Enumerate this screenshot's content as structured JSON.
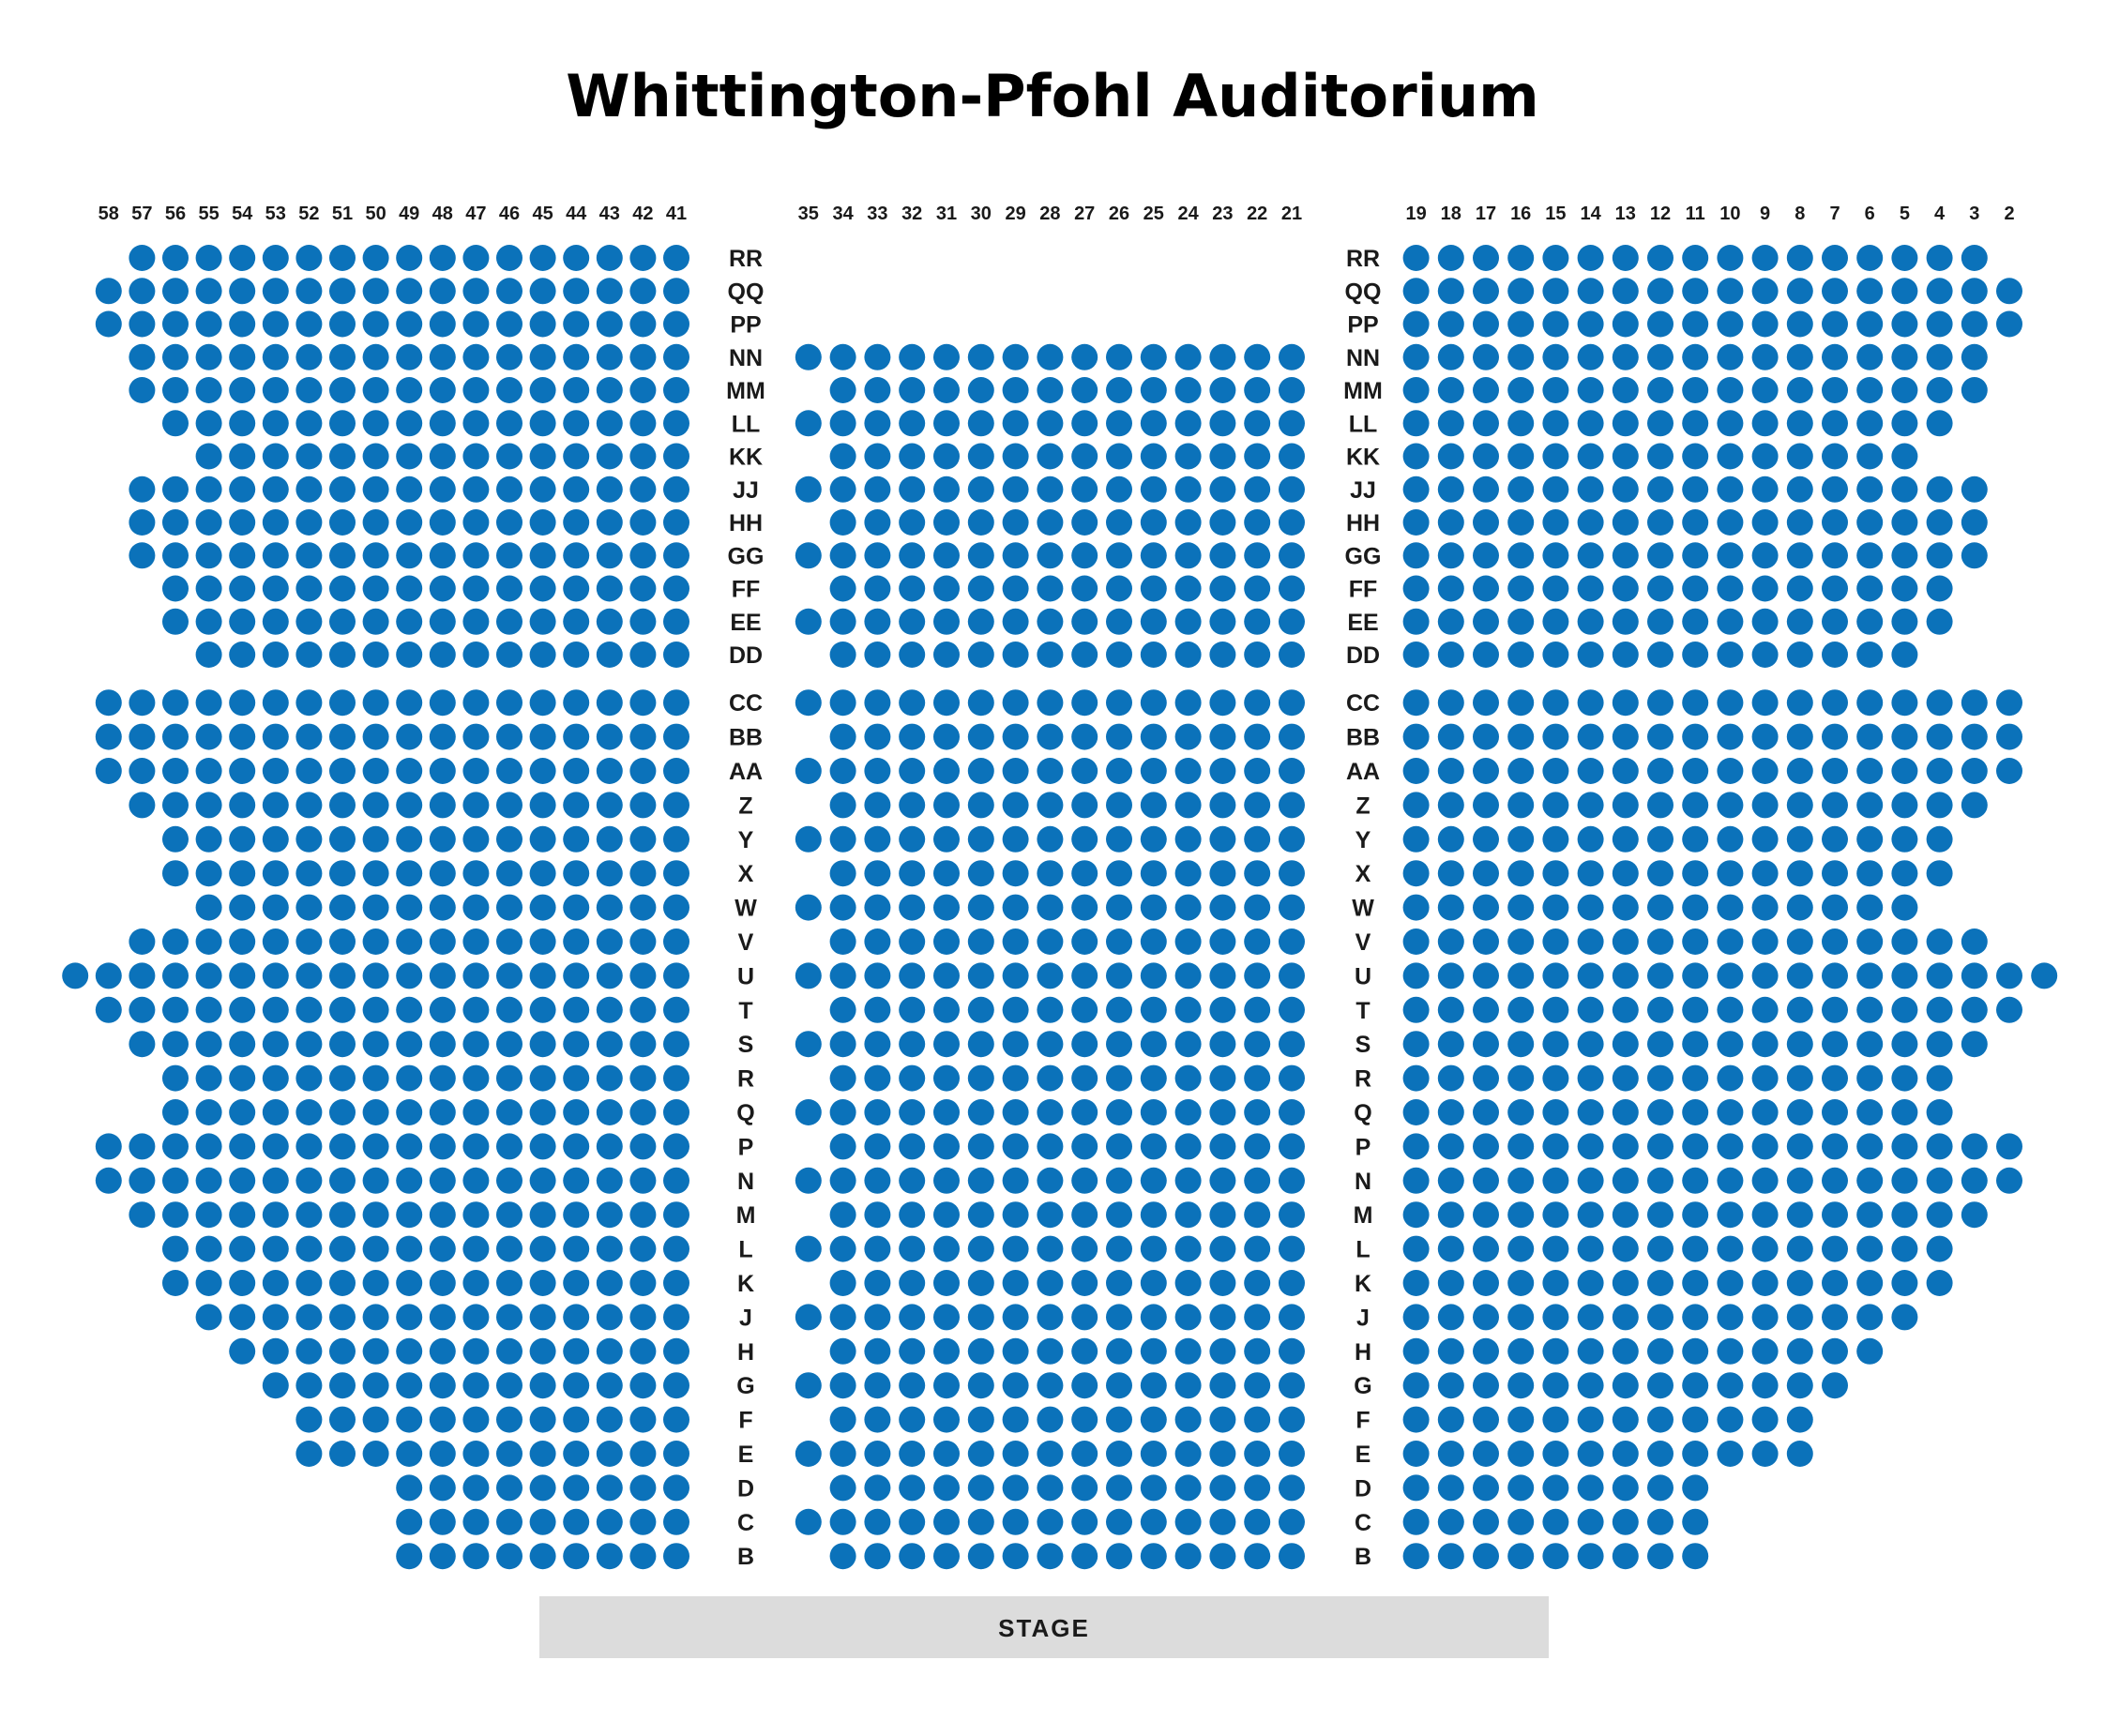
{
  "title": "Whittington-Pfohl Auditorium",
  "stage_label": "STAGE",
  "colors": {
    "seat": "#0b72ba",
    "stage": "#dcdcdc",
    "text": "#111111"
  },
  "column_labels": {
    "left": [
      "58",
      "57",
      "56",
      "55",
      "54",
      "53",
      "52",
      "51",
      "50",
      "49",
      "48",
      "47",
      "46",
      "45",
      "44",
      "43",
      "42",
      "41"
    ],
    "center": [
      "35",
      "34",
      "33",
      "32",
      "31",
      "30",
      "29",
      "28",
      "27",
      "26",
      "25",
      "24",
      "23",
      "22",
      "21"
    ],
    "right": [
      "19",
      "18",
      "17",
      "16",
      "15",
      "14",
      "13",
      "12",
      "11",
      "10",
      "9",
      "8",
      "7",
      "6",
      "5",
      "4",
      "3",
      "2"
    ]
  },
  "rows": [
    {
      "name": "RR",
      "left": [
        57,
        41
      ],
      "center": null,
      "right": [
        19,
        3
      ]
    },
    {
      "name": "QQ",
      "left": [
        58,
        41
      ],
      "center": null,
      "right": [
        19,
        2
      ]
    },
    {
      "name": "PP",
      "left": [
        58,
        41
      ],
      "center": null,
      "right": [
        19,
        2
      ]
    },
    {
      "name": "NN",
      "left": [
        57,
        41
      ],
      "center": [
        35,
        21
      ],
      "right": [
        19,
        3
      ]
    },
    {
      "name": "MM",
      "left": [
        57,
        41
      ],
      "center": [
        34,
        21
      ],
      "right": [
        19,
        3
      ]
    },
    {
      "name": "LL",
      "left": [
        56,
        41
      ],
      "center": [
        35,
        21
      ],
      "right": [
        19,
        4
      ]
    },
    {
      "name": "KK",
      "left": [
        55,
        41
      ],
      "center": [
        34,
        21
      ],
      "right": [
        19,
        5
      ]
    },
    {
      "name": "JJ",
      "left": [
        57,
        41
      ],
      "center": [
        35,
        21
      ],
      "right": [
        19,
        3
      ]
    },
    {
      "name": "HH",
      "left": [
        57,
        41
      ],
      "center": [
        34,
        21
      ],
      "right": [
        19,
        3
      ]
    },
    {
      "name": "GG",
      "left": [
        57,
        41
      ],
      "center": [
        35,
        21
      ],
      "right": [
        19,
        3
      ]
    },
    {
      "name": "FF",
      "left": [
        56,
        41
      ],
      "center": [
        34,
        21
      ],
      "right": [
        19,
        4
      ]
    },
    {
      "name": "EE",
      "left": [
        56,
        41
      ],
      "center": [
        35,
        21
      ],
      "right": [
        19,
        4
      ]
    },
    {
      "name": "DD",
      "left": [
        55,
        41
      ],
      "center": [
        34,
        21
      ],
      "right": [
        19,
        5
      ]
    },
    {
      "name": "CC",
      "left": [
        58,
        41
      ],
      "center": [
        35,
        21
      ],
      "right": [
        19,
        2
      ]
    },
    {
      "name": "BB",
      "left": [
        58,
        41
      ],
      "center": [
        34,
        21
      ],
      "right": [
        19,
        2
      ]
    },
    {
      "name": "AA",
      "left": [
        58,
        41
      ],
      "center": [
        35,
        21
      ],
      "right": [
        19,
        2
      ]
    },
    {
      "name": "Z",
      "left": [
        57,
        41
      ],
      "center": [
        34,
        21
      ],
      "right": [
        19,
        3
      ]
    },
    {
      "name": "Y",
      "left": [
        56,
        41
      ],
      "center": [
        35,
        21
      ],
      "right": [
        19,
        4
      ]
    },
    {
      "name": "X",
      "left": [
        56,
        41
      ],
      "center": [
        34,
        21
      ],
      "right": [
        19,
        4
      ]
    },
    {
      "name": "W",
      "left": [
        55,
        41
      ],
      "center": [
        35,
        21
      ],
      "right": [
        19,
        5
      ]
    },
    {
      "name": "V",
      "left": [
        57,
        41
      ],
      "center": [
        34,
        21
      ],
      "right": [
        19,
        3
      ]
    },
    {
      "name": "U",
      "left": [
        59,
        41
      ],
      "center": [
        35,
        21
      ],
      "right": [
        19,
        1
      ]
    },
    {
      "name": "T",
      "left": [
        58,
        41
      ],
      "center": [
        34,
        21
      ],
      "right": [
        19,
        2
      ]
    },
    {
      "name": "S",
      "left": [
        57,
        41
      ],
      "center": [
        35,
        21
      ],
      "right": [
        19,
        3
      ]
    },
    {
      "name": "R",
      "left": [
        56,
        41
      ],
      "center": [
        34,
        21
      ],
      "right": [
        19,
        4
      ]
    },
    {
      "name": "Q",
      "left": [
        56,
        41
      ],
      "center": [
        35,
        21
      ],
      "right": [
        19,
        4
      ]
    },
    {
      "name": "P",
      "left": [
        58,
        41
      ],
      "center": [
        34,
        21
      ],
      "right": [
        19,
        2
      ]
    },
    {
      "name": "N",
      "left": [
        58,
        41
      ],
      "center": [
        35,
        21
      ],
      "right": [
        19,
        2
      ]
    },
    {
      "name": "M",
      "left": [
        57,
        41
      ],
      "center": [
        34,
        21
      ],
      "right": [
        19,
        3
      ]
    },
    {
      "name": "L",
      "left": [
        56,
        41
      ],
      "center": [
        35,
        21
      ],
      "right": [
        19,
        4
      ]
    },
    {
      "name": "K",
      "left": [
        56,
        41
      ],
      "center": [
        34,
        21
      ],
      "right": [
        19,
        4
      ]
    },
    {
      "name": "J",
      "left": [
        55,
        41
      ],
      "center": [
        35,
        21
      ],
      "right": [
        19,
        5
      ]
    },
    {
      "name": "H",
      "left": [
        54,
        41
      ],
      "center": [
        34,
        21
      ],
      "right": [
        19,
        6
      ]
    },
    {
      "name": "G",
      "left": [
        53,
        41
      ],
      "center": [
        35,
        21
      ],
      "right": [
        19,
        7
      ]
    },
    {
      "name": "F",
      "left": [
        52,
        41
      ],
      "center": [
        34,
        21
      ],
      "right": [
        19,
        8
      ]
    },
    {
      "name": "E",
      "left": [
        52,
        41
      ],
      "center": [
        35,
        21
      ],
      "right": [
        19,
        8
      ]
    },
    {
      "name": "D",
      "left": [
        49,
        41
      ],
      "center": [
        34,
        21
      ],
      "right": [
        19,
        11
      ]
    },
    {
      "name": "C",
      "left": [
        49,
        41
      ],
      "center": [
        35,
        21
      ],
      "right": [
        19,
        11
      ]
    },
    {
      "name": "B",
      "left": [
        49,
        41
      ],
      "center": [
        34,
        21
      ],
      "right": [
        19,
        11
      ]
    }
  ]
}
